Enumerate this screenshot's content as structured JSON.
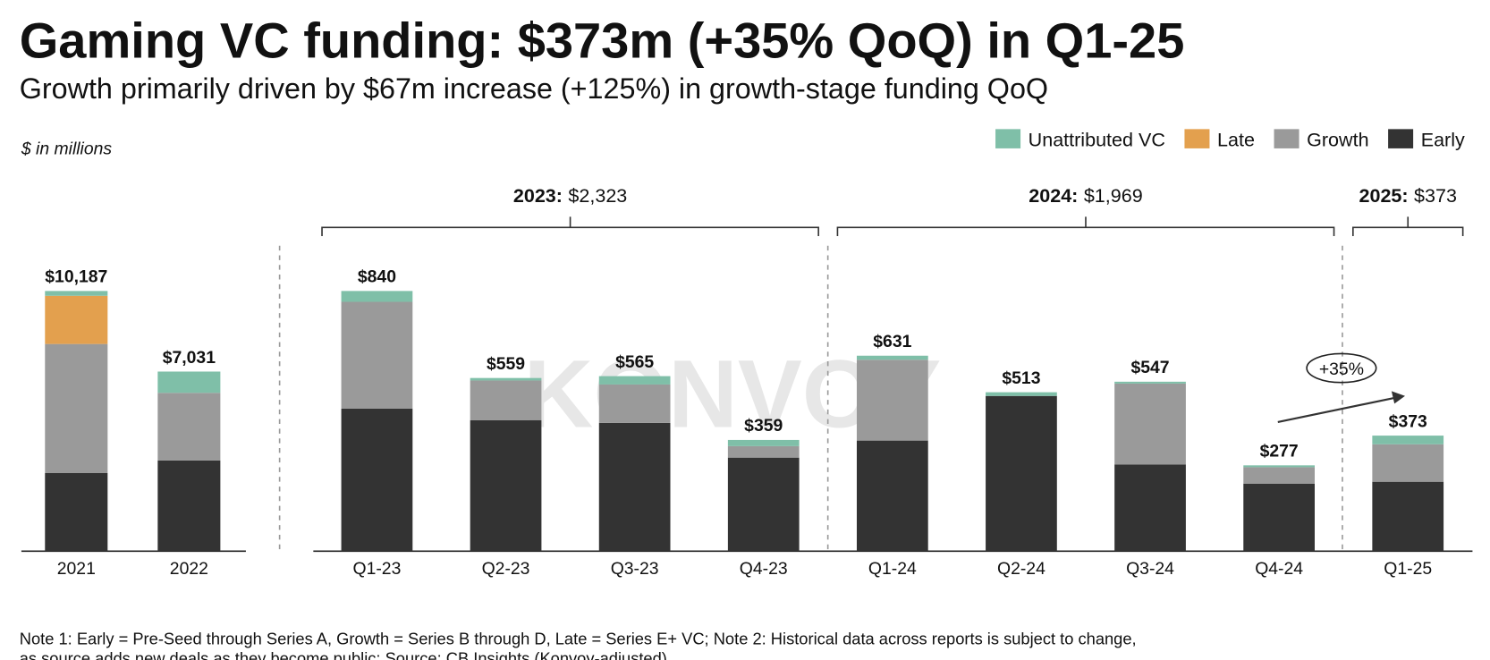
{
  "title": "Gaming VC funding: $373m (+35% QoQ) in Q1-25",
  "subtitle": "Growth primarily driven by $67m increase (+125%) in growth-stage funding QoQ",
  "unit_note": "$ in millions",
  "watermark": "KONVOY",
  "note": [
    "Note 1: Early = Pre-Seed through Series A, Growth = Series B through D, Late = Series E+ VC; Note 2: Historical data across reports is subject to change,",
    "as source adds new deals as they become public; Source: CB Insights (Konvoy-adjusted)"
  ],
  "chart_data": [
    {
      "type": "stacked_bar",
      "categories": [
        "2021",
        "2022"
      ],
      "series": [
        {
          "name": "Unattributed VC",
          "color": "#7fbfa8",
          "values": [
            189,
            832
          ]
        },
        {
          "name": "Late",
          "color": "#e3a04e",
          "values": [
            1887,
            0
          ]
        },
        {
          "name": "Growth",
          "color": "#9a9a9a",
          "values": [
            5055,
            2646
          ]
        },
        {
          "name": "Early",
          "color": "#333333",
          "values": [
            3056,
            3553
          ]
        }
      ],
      "totals": [
        10187,
        7031
      ],
      "total_labels": [
        "$10,187",
        "$7,031"
      ]
    },
    {
      "type": "stacked_bar",
      "categories": [
        "Q1-23",
        "Q2-23",
        "Q3-23",
        "Q4-23",
        "Q1-24",
        "Q2-24",
        "Q3-24",
        "Q4-24",
        "Q1-25"
      ],
      "series": [
        {
          "name": "Unattributed VC",
          "color": "#7fbfa8",
          "values": [
            35,
            8,
            27,
            20,
            13,
            12,
            6,
            6,
            28
          ]
        },
        {
          "name": "Late",
          "color": "#e3a04e",
          "values": [
            0,
            0,
            0,
            0,
            0,
            0,
            0,
            0,
            0
          ]
        },
        {
          "name": "Growth",
          "color": "#9a9a9a",
          "values": [
            345,
            128,
            124,
            37,
            261,
            0,
            261,
            53,
            121
          ]
        },
        {
          "name": "Early",
          "color": "#333333",
          "values": [
            460,
            423,
            414,
            302,
            357,
            501,
            280,
            218,
            224
          ]
        }
      ],
      "totals": [
        840,
        559,
        565,
        359,
        631,
        513,
        547,
        277,
        373
      ],
      "total_labels": [
        "$840",
        "$559",
        "$565",
        "$359",
        "$631",
        "$513",
        "$547",
        "$277",
        "$373"
      ],
      "groups": [
        {
          "name": "2023:",
          "value": 2323,
          "label": "$2,323"
        },
        {
          "name": "2024:",
          "value": 1969,
          "label": "$1,969"
        },
        {
          "name": "2025:",
          "value": 373,
          "label": "$373"
        }
      ],
      "annotation": "+35%"
    }
  ]
}
